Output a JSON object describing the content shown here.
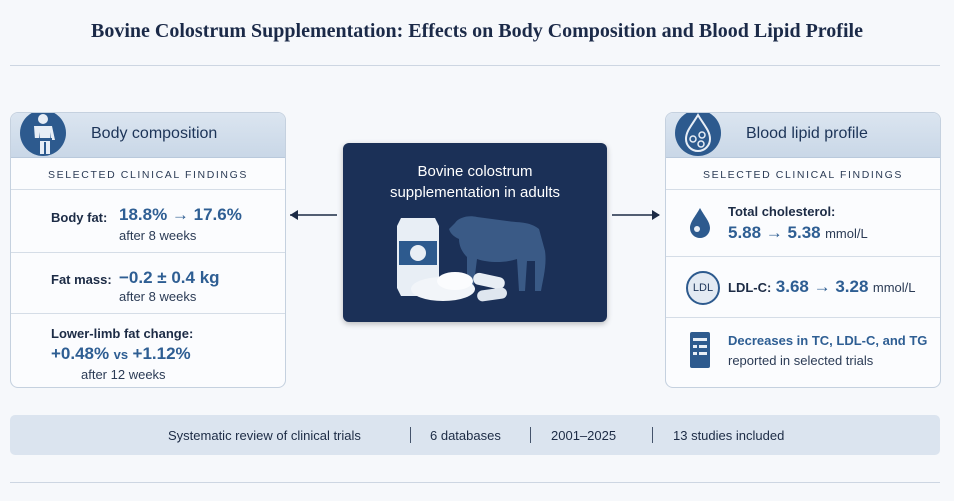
{
  "title": "Bovine Colostrum Supplementation: Effects on Body Composition and Blood Lipid Profile",
  "left_panel": {
    "header": "Body composition",
    "subheader": "SELECTED CLINICAL FINDINGS",
    "items": [
      {
        "label": "Body fat:",
        "value": "18.8% → 17.6%",
        "note": "after 8 weeks"
      },
      {
        "label": "Fat mass:",
        "value": "−0.2 ± 0.4 kg",
        "note": "after 8 weeks"
      },
      {
        "label": "Lower-limb fat change:",
        "value_a": "+0.48%",
        "connector": "vs",
        "value_b": "+1.12%",
        "note": "after 12 weeks"
      }
    ]
  },
  "center": {
    "text": "Bovine colostrum supplementation in adults"
  },
  "right_panel": {
    "header": "Blood lipid profile",
    "subheader": "SELECTED CLINICAL FINDINGS",
    "items": [
      {
        "label": "Total cholesterol:",
        "value": "5.88 → 5.38",
        "unit": "mmol/L"
      },
      {
        "icon": "LDL",
        "label": "LDL-C:",
        "value": "3.68 → 3.28",
        "unit": "mmol/L"
      },
      {
        "label": "Decreases in TC, LDL-C, and TG",
        "note": "reported in selected trials"
      }
    ]
  },
  "footer": {
    "items": [
      "Systematic review of clinical trials",
      "6 databases",
      "2001–2025",
      "13 studies included"
    ]
  }
}
